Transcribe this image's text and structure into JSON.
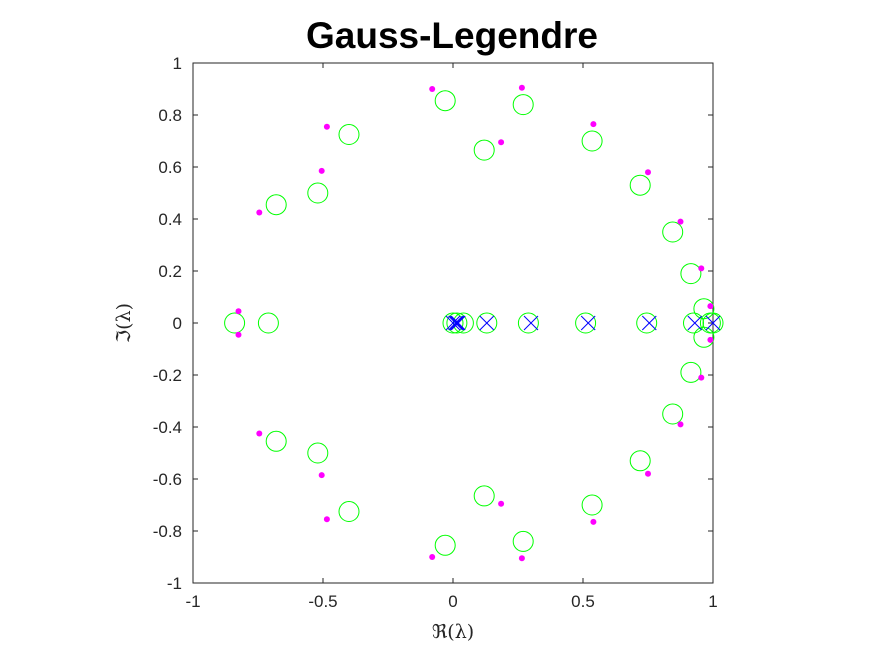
{
  "chart_data": {
    "type": "scatter",
    "title": "Gauss-Legendre",
    "xlabel": "ℜ(λ)",
    "ylabel": "ℑ(λ)",
    "xlim": [
      -1,
      1
    ],
    "ylim": [
      -1,
      1
    ],
    "x_ticks": [
      -1,
      -0.5,
      0,
      0.5,
      1
    ],
    "x_tick_labels": [
      "-1",
      "-0.5",
      "0",
      "0.5",
      "1"
    ],
    "y_ticks": [
      1,
      0.8,
      0.6,
      0.4,
      0.2,
      0,
      -0.2,
      -0.4,
      -0.6,
      -0.8,
      -1
    ],
    "y_tick_labels": [
      "1",
      "0.8",
      "0.6",
      "0.4",
      "0.2",
      "0",
      "-0.2",
      "-0.4",
      "-0.6",
      "-0.8",
      "-1"
    ],
    "grid": false,
    "legend": "none",
    "series": [
      {
        "marker": "circle",
        "color": "#00ff00",
        "points": [
          [
            -0.84,
            0
          ],
          [
            -0.71,
            0
          ],
          [
            -0.68,
            0.455
          ],
          [
            -0.52,
            0.5
          ],
          [
            -0.4,
            0.725
          ],
          [
            -0.03,
            0.855
          ],
          [
            0.12,
            0.665
          ],
          [
            0.27,
            0.84
          ],
          [
            0.535,
            0.7
          ],
          [
            0.72,
            0.53
          ],
          [
            0.845,
            0.35
          ],
          [
            0.915,
            0.19
          ],
          [
            0.965,
            0.055
          ],
          [
            0.965,
            -0.055
          ],
          [
            0.915,
            -0.19
          ],
          [
            0.845,
            -0.35
          ],
          [
            0.72,
            -0.53
          ],
          [
            0.535,
            -0.7
          ],
          [
            0.27,
            -0.84
          ],
          [
            0.12,
            -0.665
          ],
          [
            -0.03,
            -0.855
          ],
          [
            -0.4,
            -0.725
          ],
          [
            -0.52,
            -0.5
          ],
          [
            -0.68,
            -0.455
          ],
          [
            0.0,
            0
          ],
          [
            0.015,
            0
          ],
          [
            0.04,
            0
          ],
          [
            0.13,
            0
          ],
          [
            0.29,
            0
          ],
          [
            0.51,
            0
          ],
          [
            0.745,
            0
          ],
          [
            0.925,
            0
          ],
          [
            0.99,
            0
          ],
          [
            1.0,
            0
          ]
        ]
      },
      {
        "marker": "dot",
        "color": "#ff00ff",
        "points": [
          [
            -0.825,
            0.045
          ],
          [
            -0.825,
            -0.045
          ],
          [
            -0.745,
            0.425
          ],
          [
            -0.745,
            -0.425
          ],
          [
            -0.505,
            0.585
          ],
          [
            -0.505,
            -0.585
          ],
          [
            -0.485,
            0.755
          ],
          [
            -0.485,
            -0.755
          ],
          [
            -0.08,
            0.9
          ],
          [
            -0.08,
            -0.9
          ],
          [
            0.185,
            0.695
          ],
          [
            0.185,
            -0.695
          ],
          [
            0.265,
            0.905
          ],
          [
            0.265,
            -0.905
          ],
          [
            0.54,
            0.765
          ],
          [
            0.54,
            -0.765
          ],
          [
            0.75,
            0.58
          ],
          [
            0.75,
            -0.58
          ],
          [
            0.875,
            0.39
          ],
          [
            0.875,
            -0.39
          ],
          [
            0.955,
            0.21
          ],
          [
            0.955,
            -0.21
          ],
          [
            0.99,
            0.065
          ],
          [
            0.99,
            -0.065
          ]
        ]
      },
      {
        "marker": "x",
        "color": "#0000ff",
        "points": [
          [
            0.0,
            0
          ],
          [
            0.01,
            0
          ],
          [
            0.015,
            0
          ],
          [
            0.02,
            0
          ],
          [
            0.13,
            0
          ],
          [
            0.3,
            0
          ],
          [
            0.52,
            0
          ],
          [
            0.755,
            0
          ],
          [
            0.93,
            0
          ],
          [
            1.0,
            0
          ]
        ]
      }
    ]
  }
}
